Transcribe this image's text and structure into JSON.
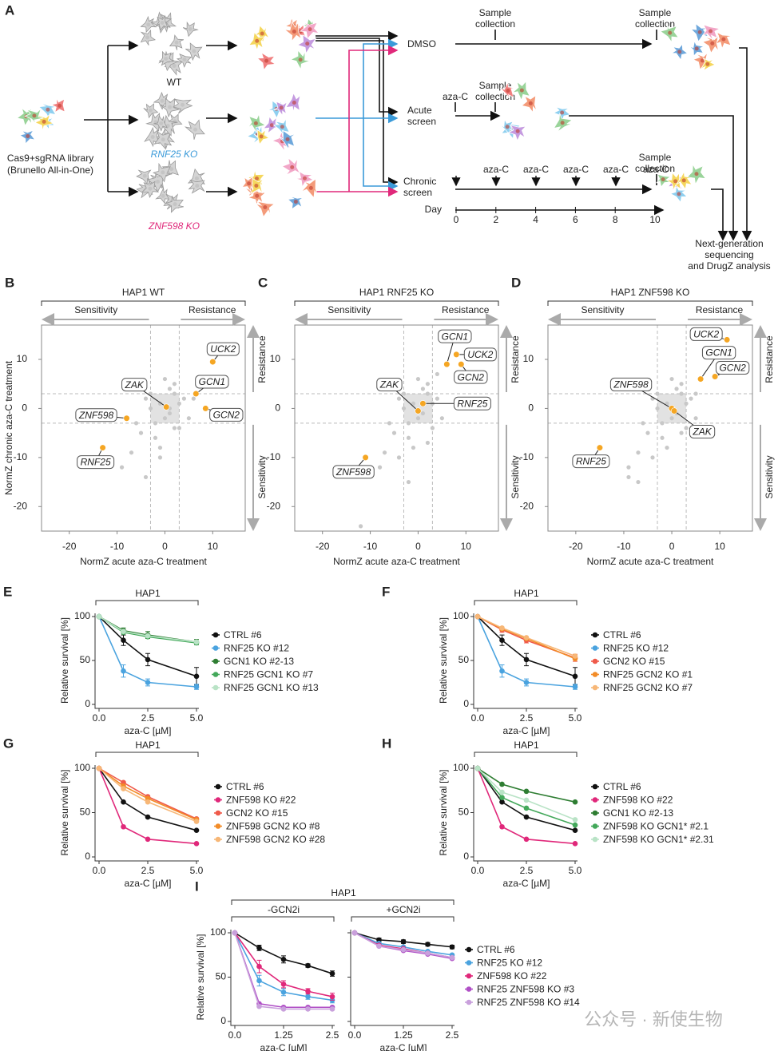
{
  "schematic": {
    "letter": "A",
    "library": [
      "Cas9+sgRNA library",
      "(Brunello All-in-One)"
    ],
    "lines": [
      "WT",
      "RNF25 KO",
      "ZNF598 KO"
    ],
    "dmso": "DMSO",
    "acute": [
      "Acute",
      "screen"
    ],
    "chronic": [
      "Chronic",
      "screen"
    ],
    "collections": [
      [
        "Sample",
        "collection"
      ],
      [
        "Sample",
        "collection"
      ],
      [
        "Sample",
        "collection"
      ],
      [
        "Sample",
        "collection"
      ]
    ],
    "aza_c": [
      "aza-C",
      "aza-C",
      "aza-C",
      "aza-C",
      "aza-C",
      "aza-C"
    ],
    "day_label": "Day",
    "days": [
      0,
      2,
      4,
      6,
      8,
      10
    ],
    "output": [
      "Next-generation",
      "sequencing",
      "and DrugZ analysis"
    ]
  },
  "watermark": "公众号 · 新使生物",
  "chart_data": [
    {
      "panel": "B",
      "type": "scatter",
      "title": "HAP1 WT",
      "directions": {
        "left": "Sensitivity",
        "right": "Resistance",
        "top": "Resistance",
        "bottom": "Sensitivity"
      },
      "xlabel": "NormZ acute aza-C treatment",
      "ylabel": "NormZ chronic aza-C treatment",
      "xlim": [
        -25.8,
        16.8
      ],
      "ylim": [
        -25,
        17
      ],
      "xticks": [
        -20,
        -10,
        0,
        10
      ],
      "yticks": [
        -20,
        -10,
        0,
        10
      ],
      "threshold": [
        -3,
        3
      ],
      "background": {
        "color": "#c8c8c8",
        "x": [
          -4,
          -2,
          -1,
          1,
          2,
          3,
          -3,
          0,
          4,
          -5,
          -6,
          2,
          -2,
          1,
          -1,
          3,
          5,
          -3,
          0,
          -7,
          -9,
          -4,
          6,
          2,
          -1,
          1
        ],
        "y": [
          2,
          -3,
          1,
          -1,
          3,
          -4,
          0,
          -2,
          2,
          -5,
          -3,
          5,
          -6,
          4,
          -8,
          1,
          -2,
          3,
          6,
          -9,
          -12,
          -14,
          2,
          -4,
          -10,
          0
        ]
      },
      "hits": {
        "color": "#f5a623",
        "labels": [
          "UCK2",
          "GCN1",
          "GCN2",
          "ZAK",
          "ZNF598",
          "RNF25"
        ],
        "x": [
          10,
          6.5,
          8.5,
          0.3,
          -8,
          -13
        ],
        "y": [
          9.5,
          3,
          0,
          0.3,
          -2,
          -8
        ]
      }
    },
    {
      "panel": "C",
      "type": "scatter",
      "title": "HAP1 RNF25 KO",
      "directions": {
        "left": "Sensitivity",
        "right": "Resistance",
        "top": "Resistance",
        "bottom": "Sensitivity"
      },
      "xlabel": "NormZ acute aza-C treatment",
      "xlim": [
        -25.8,
        16.8
      ],
      "ylim": [
        -25,
        17
      ],
      "xticks": [
        -20,
        -10,
        0,
        10
      ],
      "yticks": [
        -20,
        -10,
        0,
        10
      ],
      "threshold": [
        -3,
        3
      ],
      "background": {
        "color": "#c8c8c8",
        "x": [
          -4,
          -2,
          -1,
          1,
          2,
          3,
          -3,
          0,
          4,
          -5,
          -6,
          2,
          -2,
          1,
          -1,
          3,
          5,
          -3,
          0,
          -7,
          -8,
          -4,
          4,
          -12,
          -2,
          2
        ],
        "y": [
          2,
          -3,
          1,
          -1,
          3,
          -4,
          0,
          -2,
          2,
          -5,
          -3,
          5,
          -6,
          4,
          -8,
          1,
          -2,
          3,
          6,
          -9,
          -12,
          -10,
          7,
          -24,
          -15,
          -7
        ]
      },
      "hits": {
        "color": "#f5a623",
        "labels": [
          "GCN1",
          "UCK2",
          "GCN2",
          "ZAK",
          "RNF25",
          "ZNF598"
        ],
        "x": [
          6,
          8,
          9,
          0,
          1,
          -11
        ],
        "y": [
          9,
          11,
          9,
          -0.5,
          1,
          -10
        ]
      }
    },
    {
      "panel": "D",
      "type": "scatter",
      "title": "HAP1 ZNF598 KO",
      "directions": {
        "left": "Sensitivity",
        "right": "Resistance",
        "top": "Resistance",
        "bottom": "Sensitivity"
      },
      "xlabel": "NormZ acute aza-C treatment",
      "xlim": [
        -25.8,
        16.8
      ],
      "ylim": [
        -25,
        17
      ],
      "xticks": [
        -20,
        -10,
        0,
        10
      ],
      "yticks": [
        -20,
        -10,
        0,
        10
      ],
      "threshold": [
        -3,
        3
      ],
      "background": {
        "color": "#c8c8c8",
        "x": [
          -4,
          -2,
          -1,
          1,
          2,
          3,
          -3,
          0,
          4,
          -5,
          -6,
          2,
          -2,
          1,
          -1,
          3,
          5,
          -3,
          0,
          -7,
          -9,
          -4,
          5,
          -9,
          -7,
          2
        ],
        "y": [
          2,
          -3,
          1,
          -1,
          3,
          -4,
          0,
          -2,
          2,
          -5,
          -3,
          5,
          -6,
          4,
          -8,
          1,
          -2,
          3,
          6,
          -9,
          -12,
          -10,
          3,
          -14,
          -15,
          -5
        ]
      },
      "hits": {
        "color": "#f5a623",
        "labels": [
          "UCK2",
          "GCN1",
          "GCN2",
          "ZNF598",
          "ZAK",
          "RNF25"
        ],
        "x": [
          11.5,
          6,
          9,
          0,
          0.5,
          -15
        ],
        "y": [
          14,
          6,
          6.5,
          0,
          -0.5,
          -8
        ]
      }
    },
    {
      "panel": "E",
      "type": "line",
      "title": "HAP1",
      "xlabel": "aza-C [µM]",
      "ylabel": "Relative survival [%]",
      "x": [
        0,
        1.25,
        2.5,
        5
      ],
      "xlim": [
        0,
        5
      ],
      "ylim": [
        0,
        100
      ],
      "xticks": [
        {
          "value": 0,
          "label": "0.0"
        },
        2.5,
        {
          "value": 5,
          "label": "5.0"
        }
      ],
      "yticks": [
        0,
        50,
        100
      ],
      "series": [
        {
          "name": "CTRL #6",
          "color": "#111111",
          "values": [
            100,
            73,
            51,
            32
          ],
          "errors": [
            0,
            6,
            7,
            10
          ]
        },
        {
          "name": "RNF25 KO #12",
          "color": "#4aa3df",
          "values": [
            100,
            38,
            25,
            20
          ],
          "errors": [
            0,
            7,
            4,
            3
          ]
        },
        {
          "name": "GCN1 KO #2-13",
          "color": "#2e7d32",
          "values": [
            100,
            84,
            79,
            71
          ],
          "errors": [
            0,
            3,
            4,
            3
          ]
        },
        {
          "name": "RNF25 GCN1 KO #7",
          "color": "#43a85a",
          "values": [
            100,
            82,
            77,
            70
          ]
        },
        {
          "name": "RNF25 GCN1 KO #13",
          "color": "#b9e3c6",
          "values": [
            100,
            83,
            78,
            71
          ]
        }
      ]
    },
    {
      "panel": "F",
      "type": "line",
      "title": "HAP1",
      "xlabel": "aza-C [µM]",
      "ylabel": "Relative survival [%]",
      "x": [
        0,
        1.25,
        2.5,
        5
      ],
      "xlim": [
        0,
        5
      ],
      "ylim": [
        0,
        100
      ],
      "xticks": [
        {
          "value": 0,
          "label": "0.0"
        },
        2.5,
        {
          "value": 5,
          "label": "5.0"
        }
      ],
      "yticks": [
        0,
        50,
        100
      ],
      "series": [
        {
          "name": "CTRL #6",
          "color": "#111111",
          "values": [
            100,
            73,
            51,
            32
          ],
          "errors": [
            0,
            6,
            7,
            10
          ]
        },
        {
          "name": "RNF25 KO #12",
          "color": "#4aa3df",
          "values": [
            100,
            38,
            25,
            20
          ],
          "errors": [
            0,
            7,
            4,
            3
          ]
        },
        {
          "name": "GCN2 KO #15",
          "color": "#ef5a4a",
          "values": [
            100,
            85,
            73,
            53
          ],
          "errors": [
            0,
            3,
            3,
            4
          ]
        },
        {
          "name": "RNF25 GCN2 KO #1",
          "color": "#f28c28",
          "values": [
            100,
            86,
            75,
            52
          ]
        },
        {
          "name": "RNF25 GCN2 KO #7",
          "color": "#f7b777",
          "values": [
            100,
            87,
            76,
            55
          ]
        }
      ]
    },
    {
      "panel": "G",
      "type": "line",
      "title": "HAP1",
      "xlabel": "aza-C [µM]",
      "ylabel": "Relative survival [%]",
      "x": [
        0,
        1.25,
        2.5,
        5
      ],
      "xlim": [
        0,
        5
      ],
      "ylim": [
        0,
        100
      ],
      "xticks": [
        {
          "value": 0,
          "label": "0.0"
        },
        2.5,
        {
          "value": 5,
          "label": "5.0"
        }
      ],
      "yticks": [
        0,
        50,
        100
      ],
      "series": [
        {
          "name": "CTRL #6",
          "color": "#111111",
          "values": [
            100,
            62,
            45,
            30
          ]
        },
        {
          "name": "ZNF598 KO #22",
          "color": "#e0287a",
          "values": [
            100,
            34,
            20,
            15
          ]
        },
        {
          "name": "GCN2 KO #15",
          "color": "#ef5a4a",
          "values": [
            100,
            84,
            68,
            43
          ]
        },
        {
          "name": "ZNF598 GCN2 KO #8",
          "color": "#f28c28",
          "values": [
            100,
            80,
            66,
            42
          ]
        },
        {
          "name": "ZNF598 GCN2 KO #28",
          "color": "#f7b777",
          "values": [
            100,
            77,
            62,
            40
          ]
        }
      ]
    },
    {
      "panel": "H",
      "type": "line",
      "title": "HAP1",
      "xlabel": "aza-C [µM]",
      "ylabel": "Relative survival [%]",
      "x": [
        0,
        1.25,
        2.5,
        5
      ],
      "xlim": [
        0,
        5
      ],
      "ylim": [
        0,
        100
      ],
      "xticks": [
        {
          "value": 0,
          "label": "0.0"
        },
        2.5,
        {
          "value": 5,
          "label": "5.0"
        }
      ],
      "yticks": [
        0,
        50,
        100
      ],
      "series": [
        {
          "name": "CTRL #6",
          "color": "#111111",
          "values": [
            100,
            62,
            45,
            30
          ]
        },
        {
          "name": "ZNF598 KO #22",
          "color": "#e0287a",
          "values": [
            100,
            34,
            20,
            15
          ]
        },
        {
          "name": "GCN1 KO #2-13",
          "color": "#2e7d32",
          "values": [
            100,
            82,
            74,
            62
          ]
        },
        {
          "name": "ZNF598 KO GCN1* #2.1",
          "color": "#43a85a",
          "values": [
            100,
            67,
            55,
            36
          ]
        },
        {
          "name": "ZNF598 KO GCN1* #2.31",
          "color": "#b9e3c6",
          "values": [
            100,
            73,
            64,
            42
          ]
        }
      ]
    },
    {
      "panel": "I",
      "type": "line",
      "title": "HAP1",
      "xlabel": "aza-C [µM]",
      "ylabel": "Relative survival [%]",
      "x": [
        0,
        0.625,
        1.25,
        1.875,
        2.5
      ],
      "xlim": [
        0,
        2.5
      ],
      "ylim": [
        0,
        100
      ],
      "xticks": [
        {
          "value": 0,
          "label": "0.0"
        },
        1.25,
        2.5
      ],
      "yticks": [
        0,
        50,
        100
      ],
      "legend": [
        {
          "name": "CTRL #6",
          "color": "#111111"
        },
        {
          "name": "RNF25 KO #12",
          "color": "#4aa3df"
        },
        {
          "name": "ZNF598 KO #22",
          "color": "#e0287a"
        },
        {
          "name": "RNF25 ZNF598 KO #3",
          "color": "#b04fc6"
        },
        {
          "name": "RNF25 ZNF598 KO #14",
          "color": "#c9a0dc"
        }
      ],
      "panels": [
        {
          "title": "-GCN2i",
          "series": [
            {
              "values": [
                100,
                83,
                70,
                63,
                54
              ],
              "errors": [
                0,
                3,
                4,
                2,
                3
              ]
            },
            {
              "values": [
                100,
                46,
                33,
                28,
                24
              ],
              "errors": [
                0,
                6,
                4,
                3,
                3
              ]
            },
            {
              "values": [
                100,
                62,
                42,
                34,
                28
              ],
              "errors": [
                0,
                7,
                4,
                3,
                4
              ]
            },
            {
              "values": [
                100,
                20,
                16,
                16,
                16
              ]
            },
            {
              "values": [
                100,
                17,
                14,
                14,
                14
              ]
            }
          ]
        },
        {
          "title": "+GCN2i",
          "series": [
            {
              "values": [
                100,
                92,
                90,
                87,
                84
              ],
              "errors": [
                0,
                2,
                2,
                2,
                2
              ]
            },
            {
              "values": [
                100,
                88,
                84,
                79,
                75
              ]
            },
            {
              "values": [
                100,
                86,
                82,
                77,
                72
              ]
            },
            {
              "values": [
                100,
                85,
                80,
                76,
                71
              ]
            },
            {
              "values": [
                100,
                85,
                81,
                77,
                72
              ]
            }
          ]
        }
      ]
    }
  ]
}
